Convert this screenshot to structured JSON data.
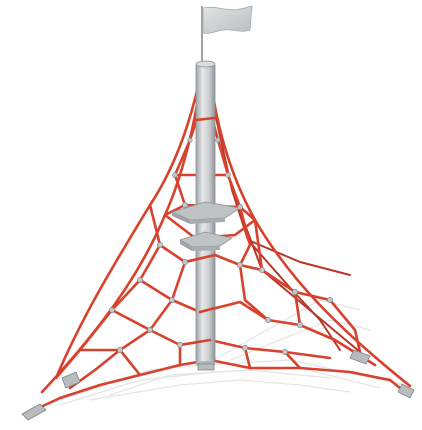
{
  "image": {
    "subject": "rope-pyramid-climbing-net",
    "colors": {
      "background": "#ffffff",
      "rope": "#d8412c",
      "rope_dark": "#a82a1c",
      "mast": "#c9ccce",
      "mast_shade": "#9ea3a6",
      "mast_light": "#e6e8e9",
      "flag": "#d3d6d8",
      "metal": "#b8bcbe",
      "shadow": "#e4e6e8"
    }
  }
}
